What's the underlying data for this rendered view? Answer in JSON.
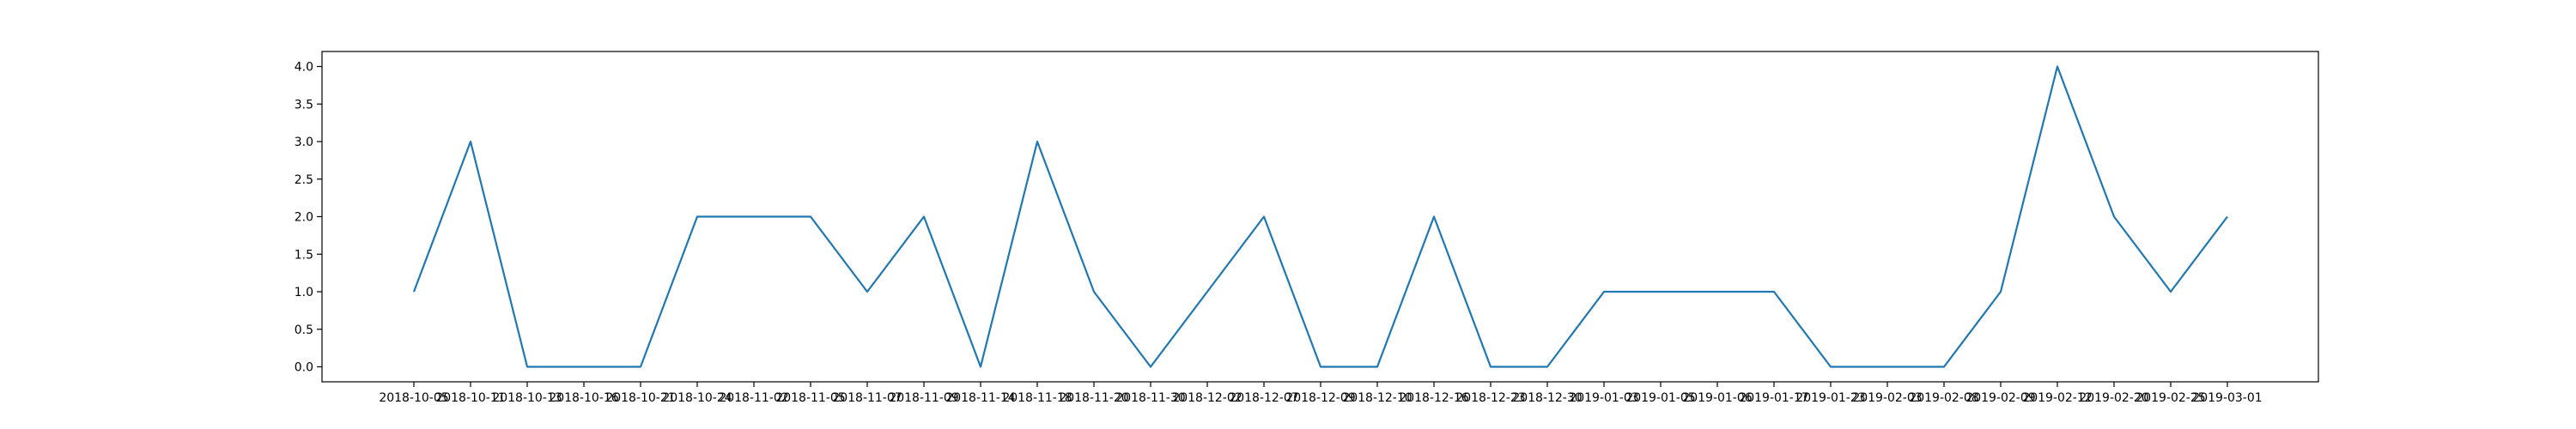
{
  "colors": {
    "series": "#1f77b4",
    "axis": "#000000",
    "background": "#ffffff"
  },
  "chart_data": {
    "type": "line",
    "title": "",
    "xlabel": "",
    "ylabel": "",
    "grid": false,
    "categories": [
      "2018-10-05",
      "2018-10-11",
      "2018-10-13",
      "2018-10-16",
      "2018-10-21",
      "2018-10-24",
      "2018-11-02",
      "2018-11-05",
      "2018-11-07",
      "2018-11-09",
      "2018-11-14",
      "2018-11-18",
      "2018-11-20",
      "2018-11-30",
      "2018-12-02",
      "2018-12-07",
      "2018-12-09",
      "2018-12-10",
      "2018-12-16",
      "2018-12-23",
      "2018-12-30",
      "2019-01-03",
      "2019-01-05",
      "2019-01-06",
      "2019-01-17",
      "2019-01-23",
      "2019-02-03",
      "2019-02-08",
      "2019-02-09",
      "2019-02-12",
      "2019-02-20",
      "2019-02-25",
      "2019-03-01"
    ],
    "series": [
      {
        "values": [
          1,
          3,
          0,
          0,
          0,
          2,
          2,
          2,
          1,
          2,
          0,
          3,
          1,
          0,
          1,
          2,
          0,
          0,
          2,
          0,
          0,
          1,
          1,
          1,
          1,
          0,
          0,
          0,
          1,
          4,
          2,
          1,
          2
        ]
      }
    ],
    "ylim": [
      -0.2,
      4.2
    ],
    "yticks": [
      0.0,
      0.5,
      1.0,
      1.5,
      2.0,
      2.5,
      3.0,
      3.5,
      4.0
    ],
    "ytick_labels": [
      "0.0",
      "0.5",
      "1.0",
      "1.5",
      "2.0",
      "2.5",
      "3.0",
      "3.5",
      "4.0"
    ]
  }
}
